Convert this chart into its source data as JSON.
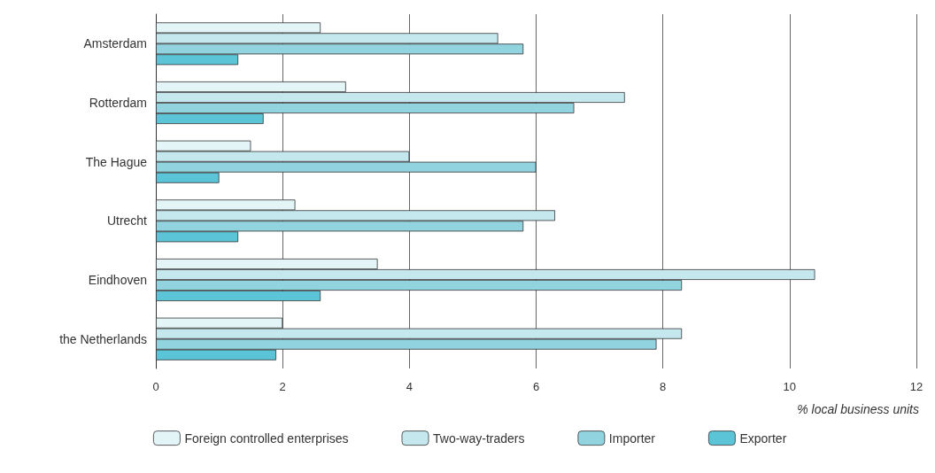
{
  "chart_data": {
    "type": "bar",
    "orientation": "horizontal",
    "xlabel": "% local business units",
    "categories": [
      "Amsterdam",
      "Rotterdam",
      "The Hague",
      "Utrecht",
      "Eindhoven",
      "the Netherlands"
    ],
    "series": [
      {
        "name": "Foreign controlled enterprises",
        "color": "#e4f5f8",
        "values": [
          2.6,
          3.0,
          1.5,
          2.2,
          3.5,
          2.0
        ]
      },
      {
        "name": "Two-way-traders",
        "color": "#c5e8ef",
        "values": [
          5.4,
          7.4,
          4.0,
          6.3,
          10.4,
          8.3
        ]
      },
      {
        "name": "Importer",
        "color": "#92d3e0",
        "values": [
          5.8,
          6.6,
          6.0,
          5.8,
          8.3,
          7.9
        ]
      },
      {
        "name": "Exporter",
        "color": "#5bc4d6",
        "values": [
          1.3,
          1.7,
          1.0,
          1.3,
          2.6,
          1.9
        ]
      }
    ],
    "xlim": [
      0,
      12
    ],
    "xticks": [
      0,
      2,
      4,
      6,
      8,
      10,
      12
    ],
    "grid": "x",
    "legend": "bottom"
  }
}
